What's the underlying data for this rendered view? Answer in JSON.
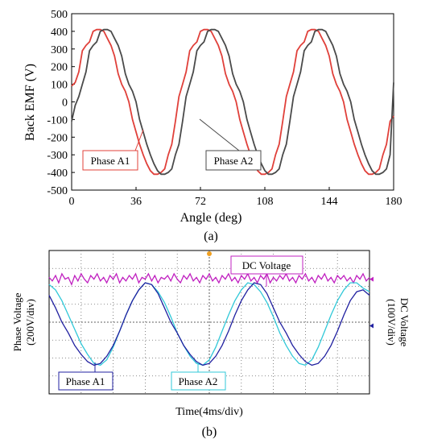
{
  "chart_data": [
    {
      "type": "line",
      "panel_label": "(a)",
      "xlabel": "Angle (deg)",
      "ylabel": "Back EMF (V)",
      "xlim": [
        0,
        180
      ],
      "ylim": [
        -500,
        500
      ],
      "xticks": [
        0,
        36,
        72,
        108,
        144,
        180
      ],
      "yticks": [
        500,
        400,
        300,
        200,
        100,
        0,
        -100,
        -200,
        -300,
        -400,
        -500
      ],
      "grid": false,
      "series": [
        {
          "name": "Phase A1",
          "color": "#e0403a",
          "x": [
            0,
            2,
            4,
            6,
            8,
            10,
            12,
            14,
            16,
            18,
            20,
            22,
            24,
            26,
            28,
            30,
            32,
            34,
            36,
            38,
            40,
            42,
            44,
            46,
            48,
            50,
            52,
            54,
            56,
            58,
            60,
            62,
            64,
            66,
            68,
            70,
            72,
            74,
            76,
            78,
            80,
            82,
            84,
            86,
            88,
            90,
            92,
            94,
            96,
            98,
            100,
            102,
            104,
            106,
            108,
            110,
            112,
            114,
            116,
            118,
            120,
            122,
            124,
            126,
            128,
            130,
            132,
            134,
            136,
            138,
            140,
            142,
            144,
            146,
            148,
            150,
            152,
            154,
            156,
            158,
            160,
            162,
            164,
            166,
            168,
            170,
            172,
            174,
            176,
            178,
            180
          ],
          "y": [
            90,
            110,
            170,
            290,
            320,
            340,
            400,
            410,
            410,
            400,
            360,
            320,
            260,
            160,
            100,
            60,
            0,
            -100,
            -170,
            -240,
            -300,
            -350,
            -390,
            -410,
            -410,
            -400,
            -380,
            -300,
            -240,
            -110,
            30,
            100,
            170,
            290,
            320,
            340,
            400,
            410,
            410,
            400,
            360,
            320,
            260,
            160,
            100,
            60,
            0,
            -100,
            -170,
            -240,
            -300,
            -350,
            -390,
            -410,
            -410,
            -400,
            -380,
            -300,
            -240,
            -110,
            30,
            100,
            170,
            290,
            320,
            340,
            400,
            410,
            410,
            400,
            360,
            320,
            260,
            160,
            100,
            60,
            0,
            -100,
            -170,
            -240,
            -300,
            -350,
            -390,
            -410,
            -410,
            -400,
            -380,
            -300,
            -240,
            -110,
            -80
          ]
        },
        {
          "name": "Phase A2",
          "color": "#4a4a4a",
          "x": [
            0,
            2,
            4,
            6,
            8,
            10,
            12,
            14,
            16,
            18,
            20,
            22,
            24,
            26,
            28,
            30,
            32,
            34,
            36,
            38,
            40,
            42,
            44,
            46,
            48,
            50,
            52,
            54,
            56,
            58,
            60,
            62,
            64,
            66,
            68,
            70,
            72,
            74,
            76,
            78,
            80,
            82,
            84,
            86,
            88,
            90,
            92,
            94,
            96,
            98,
            100,
            102,
            104,
            106,
            108,
            110,
            112,
            114,
            116,
            118,
            120,
            122,
            124,
            126,
            128,
            130,
            132,
            134,
            136,
            138,
            140,
            142,
            144,
            146,
            148,
            150,
            152,
            154,
            156,
            158,
            160,
            162,
            164,
            166,
            168,
            170,
            172,
            174,
            176,
            178,
            180
          ],
          "y": [
            -110,
            -20,
            30,
            100,
            170,
            290,
            320,
            340,
            400,
            410,
            410,
            400,
            360,
            320,
            260,
            160,
            100,
            60,
            0,
            -100,
            -170,
            -240,
            -300,
            -350,
            -390,
            -410,
            -410,
            -400,
            -380,
            -300,
            -240,
            -110,
            30,
            100,
            170,
            290,
            320,
            340,
            400,
            410,
            410,
            400,
            360,
            320,
            260,
            160,
            100,
            60,
            0,
            -100,
            -170,
            -240,
            -300,
            -350,
            -390,
            -410,
            -410,
            -400,
            -380,
            -300,
            -240,
            -110,
            30,
            100,
            170,
            290,
            320,
            340,
            400,
            410,
            410,
            400,
            360,
            320,
            260,
            160,
            100,
            60,
            0,
            -100,
            -170,
            -240,
            -300,
            -350,
            -390,
            -410,
            -410,
            -400,
            -380,
            -300,
            110
          ]
        }
      ],
      "annotations": [
        "Phase A1",
        "Phase A2"
      ]
    },
    {
      "type": "line",
      "panel_label": "(b)",
      "xlabel": "Time(4ms/div)",
      "ylabel": "Phase Voltage\n(200V/div)",
      "ylabel_right": "DC Voltage\n(100V/div)",
      "grid": true,
      "grid_divisions": {
        "x": 10,
        "y": 8
      },
      "series": [
        {
          "name": "DC Voltage",
          "color": "#c020c0",
          "x_div": [
            0,
            0.1,
            0.2,
            0.3,
            0.4,
            0.5,
            0.6,
            0.7,
            0.8,
            0.9,
            1,
            1.1,
            1.2,
            1.3,
            1.4,
            1.5,
            1.6,
            1.7,
            1.8,
            1.9,
            2,
            2.1,
            2.2,
            2.3,
            2.4,
            2.5,
            2.6,
            2.7,
            2.8,
            2.9,
            3,
            3.1,
            3.2,
            3.3,
            3.4,
            3.5,
            3.6,
            3.7,
            3.8,
            3.9,
            4,
            4.1,
            4.2,
            4.3,
            4.4,
            4.5,
            4.6,
            4.7,
            4.8,
            4.9,
            5,
            5.1,
            5.2,
            5.3,
            5.4,
            5.5,
            5.6,
            5.7,
            5.8,
            5.9,
            6,
            6.1,
            6.2,
            6.3,
            6.4,
            6.5,
            6.6,
            6.7,
            6.8,
            6.9,
            7,
            7.1,
            7.2,
            7.3,
            7.4,
            7.5,
            7.6,
            7.7,
            7.8,
            7.9,
            8,
            8.1,
            8.2,
            8.3,
            8.4,
            8.5,
            8.6,
            8.7,
            8.8,
            8.9,
            9,
            9.1,
            9.2,
            9.3,
            9.4,
            9.5,
            9.6,
            9.7,
            9.8,
            9.9,
            10
          ],
          "y_div": [
            1.5,
            1.7,
            1.4,
            1.8,
            1.3,
            1.6,
            1.5,
            1.9,
            1.4,
            1.7,
            1.3,
            1.6,
            1.8,
            1.4,
            1.6,
            1.3,
            1.7,
            1.5,
            1.8,
            1.4,
            1.6,
            1.3,
            1.8,
            1.5,
            1.7,
            1.4,
            1.6,
            1.3,
            1.8,
            1.5,
            1.6,
            1.3,
            1.7,
            1.4,
            1.8,
            1.5,
            1.6,
            1.4,
            1.7,
            1.3,
            1.6,
            1.8,
            1.4,
            1.6,
            1.3,
            1.7,
            1.5,
            1.8,
            1.4,
            1.6,
            1.3,
            1.7,
            1.5,
            1.8,
            1.4,
            1.6,
            1.3,
            1.7,
            1.5,
            1.8,
            1.4,
            1.6,
            1.3,
            1.7,
            1.5,
            1.8,
            1.4,
            1.6,
            1.3,
            1.8,
            1.5,
            1.7,
            1.4,
            1.6,
            1.3,
            1.7,
            1.5,
            1.8,
            1.4,
            1.6,
            1.3,
            1.7,
            1.5,
            1.8,
            1.4,
            1.6,
            1.3,
            1.7,
            1.5,
            1.8,
            1.4,
            1.6,
            1.4,
            1.7,
            1.5,
            1.8,
            1.4,
            1.6,
            1.3,
            1.7,
            1.5
          ]
        },
        {
          "name": "Phase A1",
          "color": "#2020a0",
          "x_div": [
            0,
            0.2,
            0.4,
            0.6,
            0.8,
            1,
            1.2,
            1.4,
            1.6,
            1.8,
            2,
            2.2,
            2.4,
            2.6,
            2.8,
            3,
            3.2,
            3.4,
            3.6,
            3.8,
            4,
            4.2,
            4.4,
            4.6,
            4.8,
            5,
            5.2,
            5.4,
            5.6,
            5.8,
            6,
            6.2,
            6.4,
            6.6,
            6.8,
            7,
            7.2,
            7.4,
            7.6,
            7.8,
            8,
            8.2,
            8.4,
            8.6,
            8.8,
            9,
            9.2,
            9.4,
            9.6,
            9.8,
            10
          ],
          "y_div": [
            2.5,
            3.2,
            4.0,
            4.6,
            5.3,
            5.8,
            6.2,
            6.4,
            6.3,
            5.9,
            5.3,
            4.5,
            3.6,
            2.8,
            2.2,
            1.8,
            1.9,
            2.4,
            3.2,
            4.0,
            4.6,
            5.3,
            5.8,
            6.2,
            6.4,
            6.3,
            5.9,
            5.3,
            4.5,
            3.6,
            2.8,
            2.2,
            1.8,
            1.9,
            2.4,
            3.2,
            4.0,
            4.6,
            5.3,
            5.8,
            6.2,
            6.4,
            6.3,
            5.9,
            5.3,
            4.5,
            3.6,
            2.8,
            2.3,
            2.2,
            2.5
          ]
        },
        {
          "name": "Phase A2",
          "color": "#30c8d8",
          "x_div": [
            0,
            0.2,
            0.4,
            0.6,
            0.8,
            1,
            1.2,
            1.4,
            1.6,
            1.8,
            2,
            2.2,
            2.4,
            2.6,
            2.8,
            3,
            3.2,
            3.4,
            3.6,
            3.8,
            4,
            4.2,
            4.4,
            4.6,
            4.8,
            5,
            5.2,
            5.4,
            5.6,
            5.8,
            6,
            6.2,
            6.4,
            6.6,
            6.8,
            7,
            7.2,
            7.4,
            7.6,
            7.8,
            8,
            8.2,
            8.4,
            8.6,
            8.8,
            9,
            9.2,
            9.4,
            9.6,
            9.8,
            10
          ],
          "y_div": [
            1.9,
            2.2,
            2.8,
            3.6,
            4.4,
            5.2,
            5.8,
            6.3,
            6.4,
            6.1,
            5.4,
            4.5,
            3.6,
            2.8,
            2.2,
            1.8,
            1.9,
            2.3,
            2.9,
            3.7,
            4.6,
            5.3,
            5.9,
            6.3,
            6.4,
            6.1,
            5.4,
            4.5,
            3.6,
            2.8,
            2.2,
            1.8,
            1.9,
            2.3,
            2.9,
            3.7,
            4.6,
            5.3,
            5.9,
            6.3,
            6.4,
            6.1,
            5.4,
            4.5,
            3.6,
            2.8,
            2.2,
            1.8,
            1.8,
            2.1,
            2.3
          ]
        }
      ],
      "annotations": [
        "DC Voltage",
        "Phase A1",
        "Phase A2"
      ]
    }
  ]
}
